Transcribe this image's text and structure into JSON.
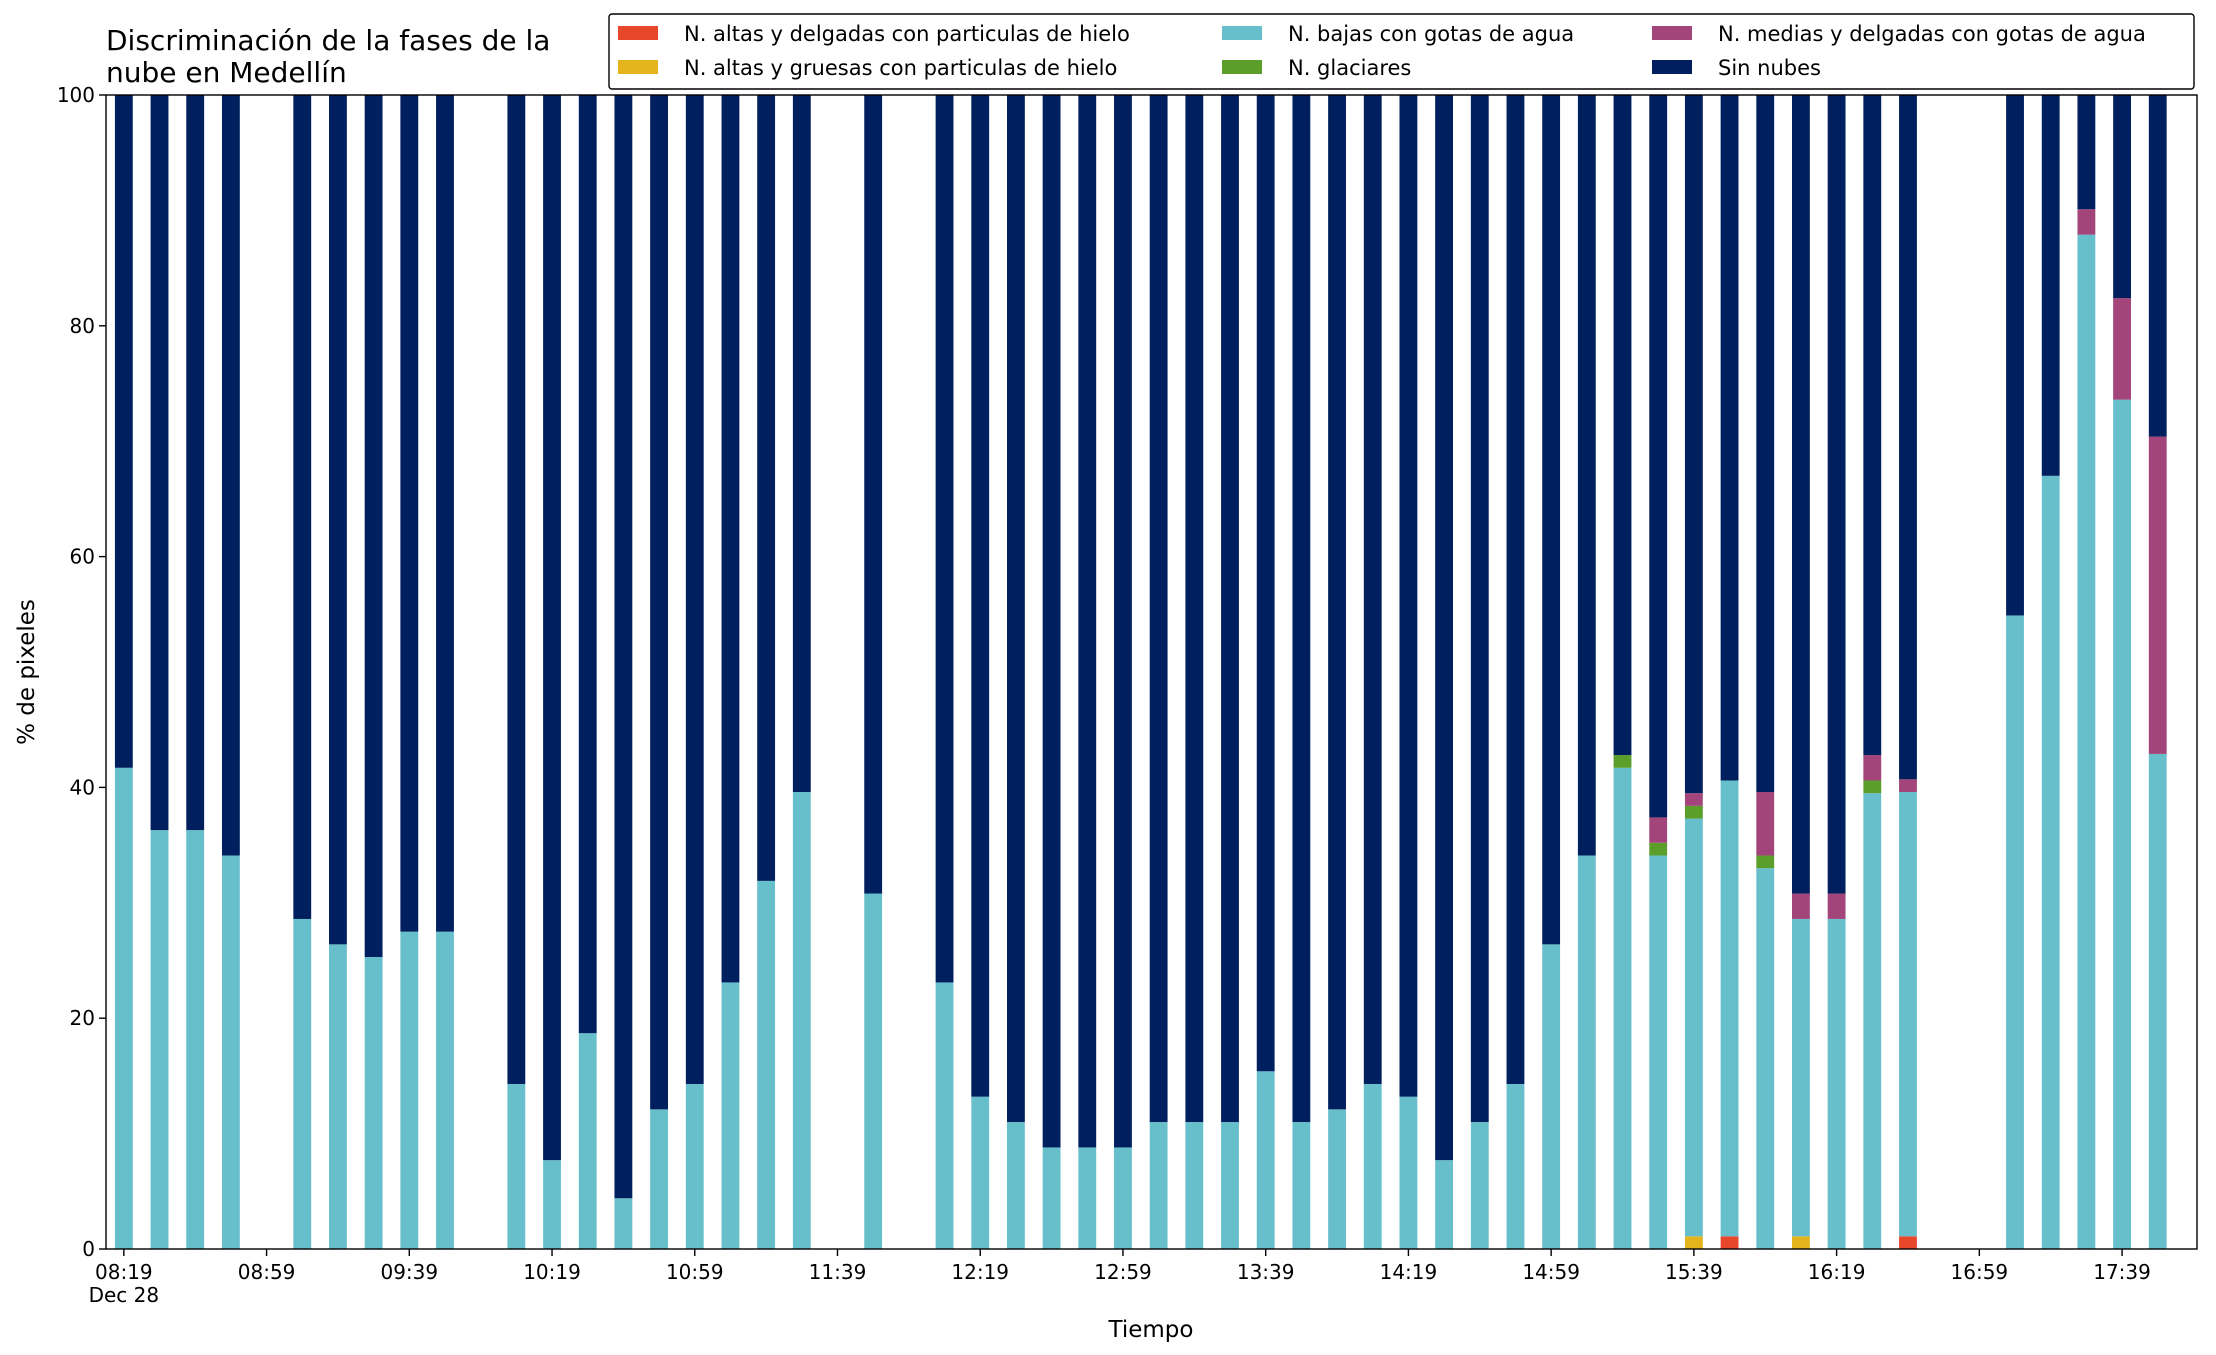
{
  "chart_data": {
    "type": "stacked_bar",
    "title": "Discriminación de la fases de la\nnube en Medellín",
    "xlabel": "Tiempo",
    "ylabel": "% de pixeles",
    "x": [
      "08:19",
      "08:29",
      "08:39",
      "08:49",
      "09:09",
      "09:19",
      "09:29",
      "09:39",
      "09:49",
      "10:09",
      "10:19",
      "10:29",
      "10:39",
      "10:49",
      "10:59",
      "11:09",
      "11:19",
      "11:29",
      "11:49",
      "12:09",
      "12:19",
      "12:29",
      "12:39",
      "12:49",
      "12:59",
      "13:09",
      "13:19",
      "13:29",
      "13:39",
      "13:49",
      "13:59",
      "14:09",
      "14:19",
      "14:29",
      "14:39",
      "14:49",
      "14:59",
      "15:09",
      "15:19",
      "15:29",
      "15:39",
      "15:49",
      "15:59",
      "16:09",
      "16:19",
      "16:29",
      "16:39",
      "17:09",
      "17:19",
      "17:29",
      "17:39",
      "17:49"
    ],
    "series": [
      {
        "name": "N. altas y delgadas con particulas de hielo",
        "color": "#e8472c",
        "values": [
          0,
          0,
          0,
          0,
          0,
          0,
          0,
          0,
          0,
          0,
          0,
          0,
          0,
          0,
          0,
          0,
          0,
          0,
          0,
          0,
          0,
          0,
          0,
          0,
          0,
          0,
          0,
          0,
          0,
          0,
          0,
          0,
          0,
          0,
          0,
          0,
          0,
          0,
          0,
          0,
          0,
          1.1,
          0,
          0,
          0,
          0,
          1.1,
          0,
          0,
          0,
          0,
          0
        ]
      },
      {
        "name": "N. altas y gruesas con particulas de hielo",
        "color": "#e3b41b",
        "values": [
          0,
          0,
          0,
          0,
          0,
          0,
          0,
          0,
          0,
          0,
          0,
          0,
          0,
          0,
          0,
          0,
          0,
          0,
          0,
          0,
          0,
          0,
          0,
          0,
          0,
          0,
          0,
          0,
          0,
          0,
          0,
          0,
          0,
          0,
          0,
          0,
          0,
          0,
          0,
          0,
          1.1,
          0,
          0,
          1.1,
          0,
          0,
          0,
          0,
          0,
          0,
          0,
          0
        ]
      },
      {
        "name": "N. bajas con gotas de agua",
        "color": "#66bfcb",
        "values": [
          41.7,
          36.3,
          36.3,
          34.1,
          28.6,
          26.4,
          25.3,
          27.5,
          27.5,
          14.3,
          7.7,
          18.7,
          4.4,
          12.1,
          14.3,
          23.1,
          31.9,
          39.6,
          30.8,
          23.1,
          13.2,
          11.0,
          8.8,
          8.8,
          8.8,
          11.0,
          11.0,
          11.0,
          15.4,
          11.0,
          12.1,
          14.3,
          13.2,
          7.7,
          11.0,
          14.3,
          26.4,
          34.1,
          41.7,
          34.1,
          36.2,
          39.5,
          33.0,
          27.5,
          28.6,
          39.5,
          38.5,
          54.9,
          67.0,
          87.9,
          73.6,
          42.9
        ]
      },
      {
        "name": "N. glaciares",
        "color": "#5b9e2a",
        "values": [
          0,
          0,
          0,
          0,
          0,
          0,
          0,
          0,
          0,
          0,
          0,
          0,
          0,
          0,
          0,
          0,
          0,
          0,
          0,
          0,
          0,
          0,
          0,
          0,
          0,
          0,
          0,
          0,
          0,
          0,
          0,
          0,
          0,
          0,
          0,
          0,
          0,
          0,
          1.1,
          1.1,
          1.1,
          0,
          1.1,
          0,
          0,
          1.1,
          0,
          0,
          0,
          0,
          0,
          0
        ]
      },
      {
        "name": "N. medias y delgadas con gotas de agua",
        "color": "#a3457a",
        "values": [
          0,
          0,
          0,
          0,
          0,
          0,
          0,
          0,
          0,
          0,
          0,
          0,
          0,
          0,
          0,
          0,
          0,
          0,
          0,
          0,
          0,
          0,
          0,
          0,
          0,
          0,
          0,
          0,
          0,
          0,
          0,
          0,
          0,
          0,
          0,
          0,
          0,
          0,
          0,
          2.2,
          1.1,
          0,
          5.5,
          2.2,
          2.2,
          2.2,
          1.1,
          0,
          0,
          2.2,
          8.8,
          27.5
        ]
      },
      {
        "name": "Sin nubes",
        "color": "#001f5e",
        "values": [
          58.3,
          63.7,
          63.7,
          65.9,
          71.4,
          73.6,
          74.7,
          72.5,
          72.5,
          85.7,
          92.3,
          81.3,
          95.6,
          87.9,
          85.7,
          76.9,
          68.1,
          60.4,
          69.2,
          76.9,
          86.8,
          89.0,
          91.2,
          91.2,
          91.2,
          89.0,
          89.0,
          89.0,
          84.6,
          89.0,
          87.9,
          85.7,
          86.8,
          92.3,
          89.0,
          85.7,
          73.6,
          65.9,
          57.2,
          62.6,
          60.5,
          59.4,
          60.4,
          69.2,
          69.2,
          57.2,
          59.3,
          45.1,
          33.0,
          9.9,
          17.6,
          29.6
        ]
      }
    ],
    "xlim": [
      "08:14",
      "18:00"
    ],
    "xticks": [
      {
        "value": "08:19",
        "label": "08:19\nDec 28"
      },
      "08:59",
      "09:39",
      "10:19",
      "10:59",
      "11:39",
      "12:19",
      "12:59",
      "13:39",
      "14:19",
      "14:59",
      "15:39",
      "16:19",
      "16:59",
      "17:39"
    ],
    "ylim": [
      0,
      100
    ],
    "yticks": [
      0,
      20,
      40,
      60,
      80,
      100
    ],
    "legend": "top-right"
  }
}
